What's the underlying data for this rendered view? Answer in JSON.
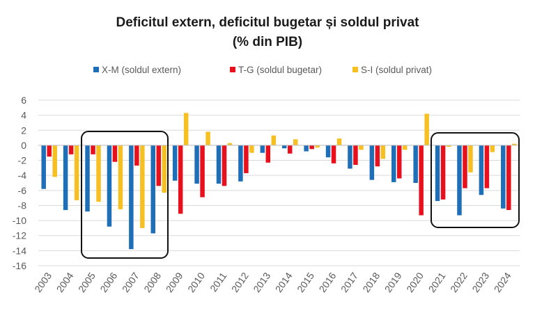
{
  "chart_data": {
    "type": "bar",
    "title": "Deficitul extern, deficitul bugetar și soldul privat",
    "subtitle": "(% din PIB)",
    "xlabel": "",
    "ylabel": "",
    "ylim": [
      -16,
      6
    ],
    "yticks": [
      6,
      4,
      2,
      0,
      -2,
      -4,
      -6,
      -8,
      -10,
      -12,
      -14,
      -16
    ],
    "grid": true,
    "legend_position": "top",
    "categories": [
      "2003",
      "2004",
      "2005",
      "2006",
      "2007",
      "2008",
      "2009",
      "2010",
      "2011",
      "2012",
      "2013",
      "2014",
      "2015",
      "2016",
      "2017",
      "2018",
      "2019",
      "2020",
      "2021",
      "2022",
      "2023",
      "2024"
    ],
    "series": [
      {
        "name": "X-M (soldul extern)",
        "color": "#1f6fb8",
        "values": [
          -5.8,
          -8.6,
          -8.8,
          -10.8,
          -13.8,
          -11.7,
          -4.7,
          -5.1,
          -5.1,
          -4.8,
          -1.0,
          -0.4,
          -0.8,
          -1.6,
          -3.1,
          -4.6,
          -4.9,
          -5.0,
          -7.4,
          -9.3,
          -6.6,
          -8.4
        ]
      },
      {
        "name": "T-G (soldul bugetar)",
        "color": "#e8101d",
        "values": [
          -1.5,
          -1.2,
          -1.2,
          -2.2,
          -2.7,
          -5.4,
          -9.1,
          -6.9,
          -5.4,
          -3.7,
          -2.3,
          -1.1,
          -0.5,
          -2.4,
          -2.6,
          -2.8,
          -4.4,
          -9.3,
          -7.2,
          -5.7,
          -5.7,
          -8.6
        ]
      },
      {
        "name": "S-I (soldul privat)",
        "color": "#f6c022",
        "values": [
          -4.2,
          -7.3,
          -7.5,
          -8.5,
          -11.0,
          -6.3,
          4.3,
          1.8,
          0.3,
          -1.0,
          1.3,
          0.8,
          -0.3,
          0.9,
          -0.6,
          -1.8,
          -0.6,
          4.2,
          -0.2,
          -3.6,
          -0.9,
          0.2
        ]
      }
    ],
    "annotations": [
      "highlight-box-2005-2008",
      "highlight-box-2021-2024"
    ]
  }
}
